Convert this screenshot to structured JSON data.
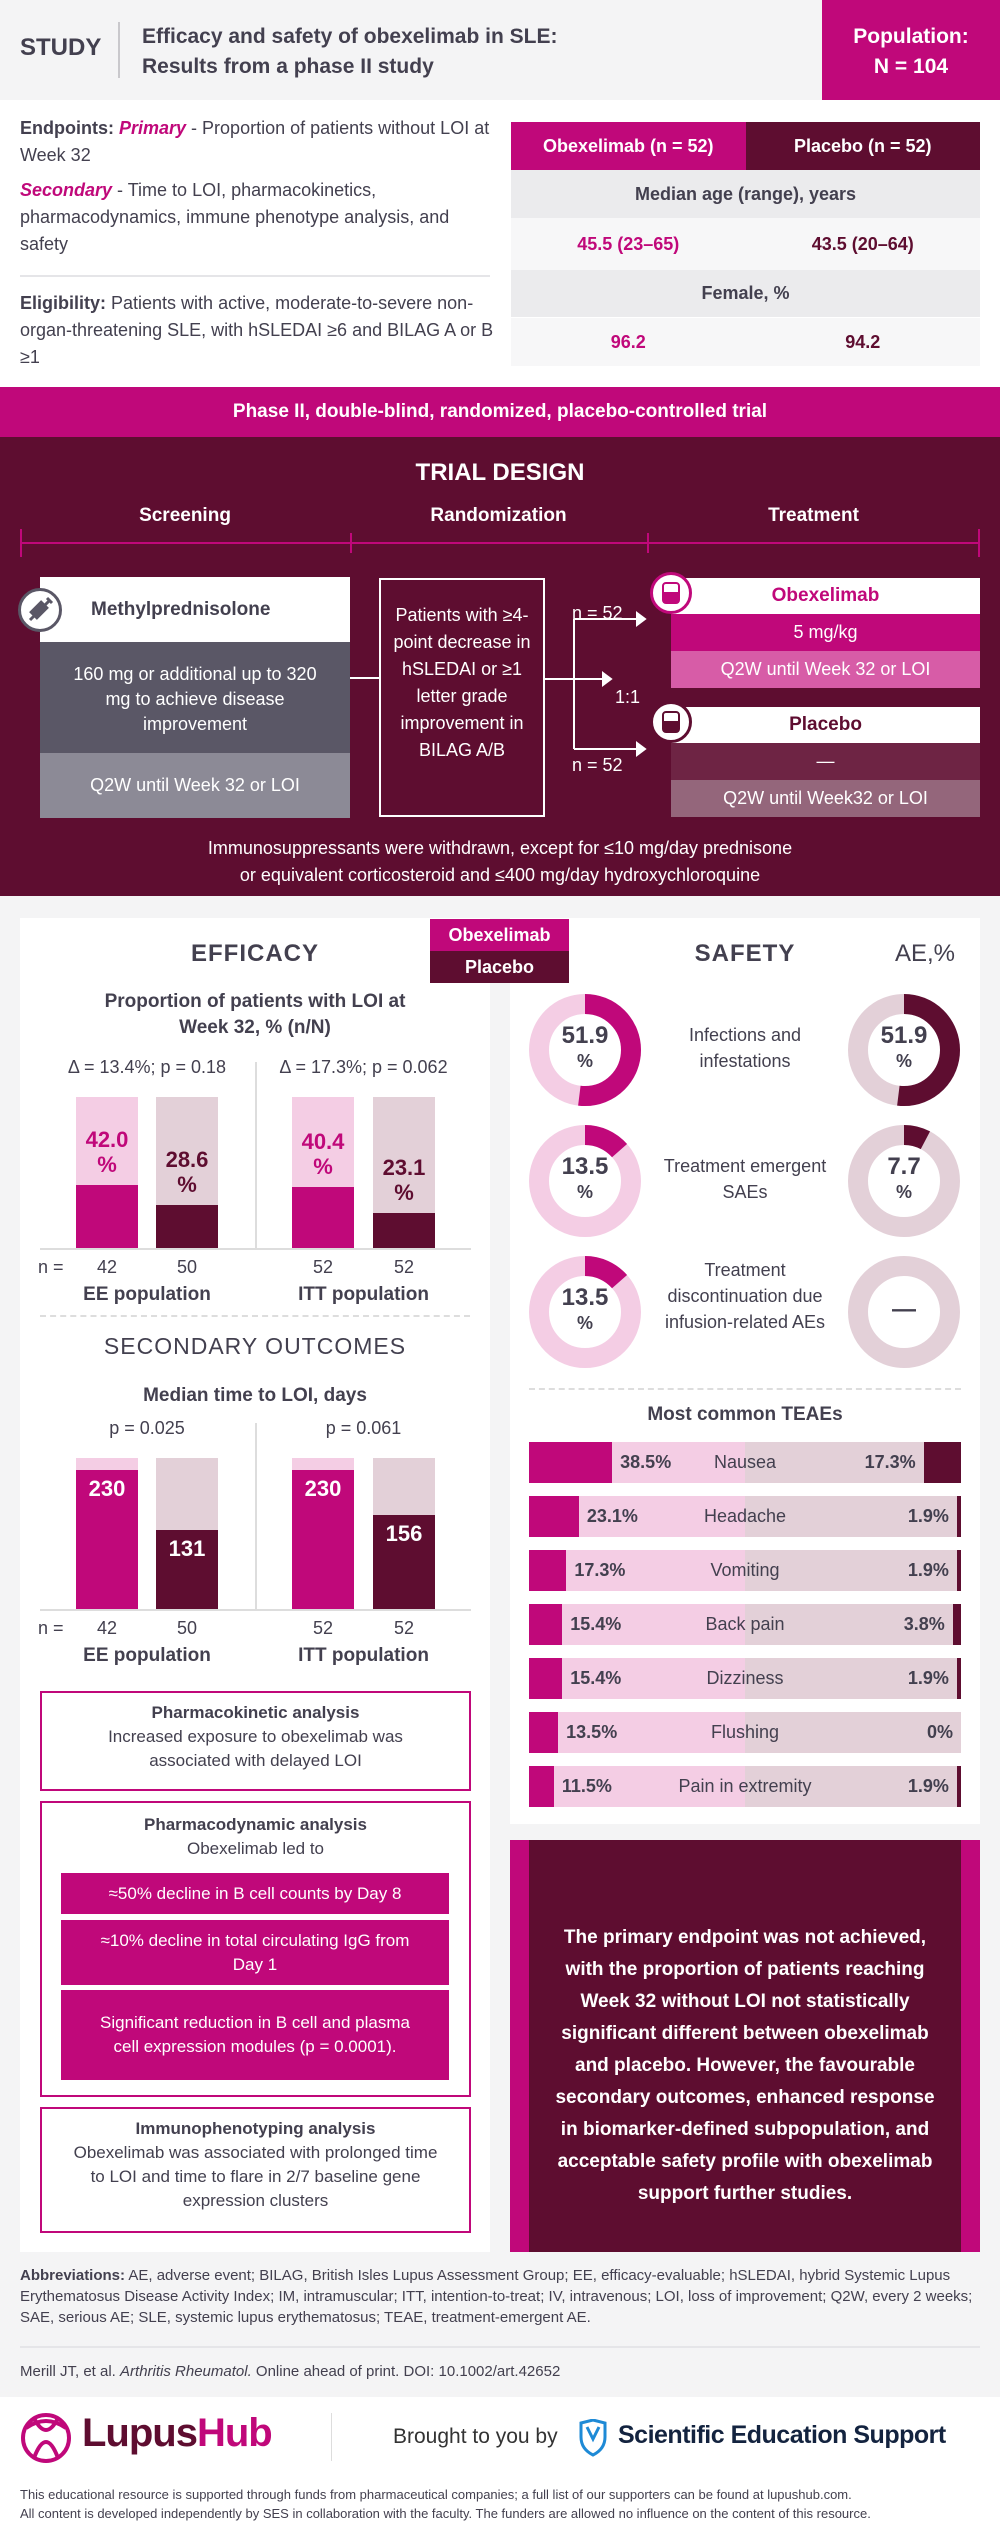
{
  "header": {
    "study_label": "STUDY",
    "title_line1": "Efficacy and safety of obexelimab in SLE:",
    "title_line2": "Results from a phase II study",
    "population_label": "Population:",
    "population_value": "N = 104"
  },
  "endpoints": {
    "label": "Endpoints:",
    "primary_label": "Primary",
    "primary_text": " - Proportion of patients without LOI at Week 32",
    "secondary_label": "Secondary",
    "secondary_text": " - Time to LOI, pharmacokinetics, pharmacodynamics, immune phenotype analysis, and safety",
    "eligibility_label": "Eligibility:",
    "eligibility_text": " Patients with active, moderate-to-severe non-organ-threatening SLE, with hSLEDAI ≥6 and BILAG A or B ≥1"
  },
  "baseline_table": {
    "col_obex": "Obexelimab (n = 52)",
    "col_placebo": "Placebo (n = 52)",
    "rows": [
      {
        "label": "Median age (range), years",
        "obex": "45.5 (23–65)",
        "placebo": "43.5 (20–64)"
      },
      {
        "label": "Female, %",
        "obex": "96.2",
        "placebo": "94.2"
      }
    ]
  },
  "phase_banner": "Phase II, double-blind, randomized, placebo-controlled trial",
  "trial_design": {
    "title": "TRIAL DESIGN",
    "phases": [
      "Screening",
      "Randomization",
      "Treatment"
    ],
    "screening": {
      "drug": "Methylprednisolone",
      "dose": "160 mg or additional up to 320 mg to achieve disease improvement",
      "schedule": "Q2W until Week 32 or LOI",
      "icon": "syringe-icon"
    },
    "randomization_criteria": "Patients with ≥4-point decrease in hSLEDAI or ≥1 letter grade improvement in BILAG A/B",
    "ratio": "1:1",
    "n_obex": "n = 52",
    "n_placebo": "n = 52",
    "obex": {
      "name": "Obexelimab",
      "dose": "5 mg/kg",
      "schedule": "Q2W until Week 32 or LOI",
      "icon": "iv-bag-icon"
    },
    "placebo": {
      "name": "Placebo",
      "dose": "—",
      "schedule": "Q2W until Week32 or LOI",
      "icon": "iv-bag-icon"
    },
    "note_line1": "Immunosuppressants were withdrawn, except for ≤10 mg/day prednisone",
    "note_line2": "or equivalent corticosteroid and ≤400 mg/day hydroxychloroquine"
  },
  "legend": {
    "obex": "Obexelimab",
    "placebo": "Placebo"
  },
  "colors": {
    "obex": "#c0087a",
    "placebo": "#5e0d30",
    "obex_light": "#f4cde4",
    "placebo_light": "#e3d0d8"
  },
  "efficacy": {
    "title": "EFFICACY",
    "n_label": "n ="
  },
  "chart_data": [
    {
      "type": "bar",
      "title": "Proportion of patients with LOI at Week 32, % (n/N)",
      "ylim": [
        0,
        100
      ],
      "groups": [
        {
          "label": "EE population",
          "stat": "Δ = 13.4%; p = 0.18",
          "bars": [
            {
              "series": "Obexelimab",
              "value": 42.0,
              "label": "42.0 %",
              "n": "42"
            },
            {
              "series": "Placebo",
              "value": 28.6,
              "label": "28.6 %",
              "n": "50"
            }
          ]
        },
        {
          "label": "ITT population",
          "stat": "Δ = 17.3%; p = 0.062",
          "bars": [
            {
              "series": "Obexelimab",
              "value": 40.4,
              "label": "40.4 %",
              "n": "52"
            },
            {
              "series": "Placebo",
              "value": 23.1,
              "label": "23.1 %",
              "n": "52"
            }
          ]
        }
      ]
    },
    {
      "type": "bar",
      "section": "SECONDARY OUTCOMES",
      "title": "Median time to LOI, days",
      "ylim": [
        0,
        250
      ],
      "groups": [
        {
          "label": "EE population",
          "stat": "p = 0.025",
          "bars": [
            {
              "series": "Obexelimab",
              "value": 230,
              "label": "230",
              "n": "42"
            },
            {
              "series": "Placebo",
              "value": 131,
              "label": "131",
              "n": "50"
            }
          ]
        },
        {
          "label": "ITT population",
          "stat": "p = 0.061",
          "bars": [
            {
              "series": "Obexelimab",
              "value": 230,
              "label": "230",
              "n": "52"
            },
            {
              "series": "Placebo",
              "value": 156,
              "label": "156",
              "n": "52"
            }
          ]
        }
      ]
    },
    {
      "type": "pie",
      "title": "SAFETY",
      "unit_label": "AE,%",
      "rows": [
        {
          "label": "Infections and infestations",
          "obex": 51.9,
          "obex_label": "51.9",
          "placebo": 51.9,
          "placebo_label": "51.9"
        },
        {
          "label": "Treatment emergent SAEs",
          "obex": 13.5,
          "obex_label": "13.5",
          "placebo": 7.7,
          "placebo_label": "7.7"
        },
        {
          "label": "Treatment discontinuation due infusion-related AEs",
          "obex": 13.5,
          "obex_label": "13.5",
          "placebo": 0,
          "placebo_label": "—"
        }
      ]
    },
    {
      "type": "bar",
      "title": "Most common TEAEs",
      "xlim": [
        0,
        100
      ],
      "rows": [
        {
          "label": "Nausea",
          "obex": 38.5,
          "placebo": 17.3
        },
        {
          "label": "Headache",
          "obex": 23.1,
          "placebo": 1.9
        },
        {
          "label": "Vomiting",
          "obex": 17.3,
          "placebo": 1.9
        },
        {
          "label": "Back pain",
          "obex": 15.4,
          "placebo": 3.8
        },
        {
          "label": "Dizziness",
          "obex": 15.4,
          "placebo": 1.9
        },
        {
          "label": "Flushing",
          "obex": 13.5,
          "placebo": 0
        },
        {
          "label": "Pain in extremity",
          "obex": 11.5,
          "placebo": 1.9
        }
      ]
    }
  ],
  "pk": {
    "title": "Pharmacokinetic analysis",
    "text": "Increased exposure to obexelimab was associated with delayed LOI"
  },
  "pd": {
    "title": "Pharmacodynamic analysis",
    "intro": "Obexelimab led to",
    "items": [
      "≈50% decline in B cell counts by Day 8",
      "≈10% decline in total circulating IgG from Day 1",
      "Significant reduction in B cell and plasma cell expression modules (p = 0.0001)."
    ]
  },
  "immuno": {
    "title": "Immunophenotyping analysis",
    "text": "Obexelimab was associated with prolonged time to LOI and time to flare in 2/7 baseline gene expression clusters"
  },
  "conclusion": "The primary endpoint was not achieved, with the proportion of patients reaching Week 32 without LOI not statistically significant different between obexelimab and placebo. However, the favourable secondary outcomes, enhanced response in biomarker-defined subpopulation, and acceptable safety profile with obexelimab support further studies.",
  "abbreviations": {
    "label": "Abbreviations:",
    "text": " AE, adverse event; BILAG, British Isles Lupus Assessment Group; EE, efficacy-evaluable; hSLEDAI, hybrid Systemic Lupus Erythematosus Disease Activity Index; IM, intramuscular; ITT, intention-to-treat; IV, intravenous; LOI, loss of improvement; Q2W, every 2 weeks; SAE, serious AE; SLE, systemic lupus erythematosus; TEAE, treatment-emergent AE."
  },
  "citation": {
    "authors": "Merill JT, et al. ",
    "journal": "Arthritis Rheumatol.",
    "rest": " Online ahead of print. DOI: 10.1002/art.42652"
  },
  "footer": {
    "logo": "LupusHub",
    "logo_part1": "Lupus",
    "logo_part2": "Hub",
    "brought_by": "Brought to you by",
    "sponsor": "Scientific Education Support",
    "disclaimer_line1": "This educational resource is supported through funds from pharmaceutical companies; a full list of our supporters can be found at lupushub.com.",
    "disclaimer_line2": "All content is developed independently by SES in collaboration with the faculty. The funders are allowed no influence on the content of this resource."
  }
}
